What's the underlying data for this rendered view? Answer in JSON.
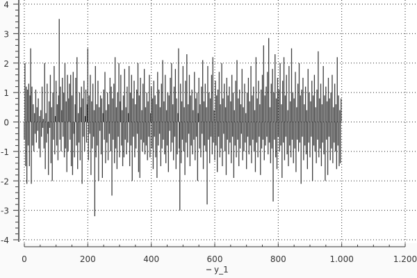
{
  "chart_data": {
    "type": "bar",
    "style": "needle",
    "x_start": 0,
    "x_step": 2,
    "xlim": [
      0,
      1200
    ],
    "ylim": [
      -4,
      4
    ],
    "x_ticks": [
      "0",
      "200",
      "400",
      "600",
      "800",
      "1.000",
      "1.200"
    ],
    "x_tick_values": [
      0,
      200,
      400,
      600,
      800,
      1000,
      1200
    ],
    "y_ticks": [
      "4",
      "3",
      "2",
      "1",
      "0",
      "-1",
      "-2",
      "-3",
      "-4"
    ],
    "y_tick_values": [
      4,
      3,
      2,
      1,
      0,
      -1,
      -2,
      -3,
      -4
    ],
    "grid": true,
    "legend_position": "bottom",
    "series": [
      {
        "name": "y_1",
        "color": "#1a1a1a",
        "values": [
          -0.6,
          2.0,
          -1.5,
          1.2,
          -2.1,
          1.1,
          -0.8,
          1.3,
          -1.5,
          0.9,
          2.5,
          -2.1,
          1.2,
          -0.8,
          0.6,
          -1.0,
          0.3,
          -0.4,
          1.1,
          -0.7,
          0.5,
          -0.3,
          0.8,
          -0.9,
          0.2,
          -1.2,
          0.4,
          -0.5,
          1.2,
          -0.2,
          0.1,
          -0.9,
          2.0,
          -1.6,
          0.3,
          -0.7,
          1.3,
          -0.4,
          -1.8,
          0.7,
          -0.2,
          1.6,
          -1.4,
          0.5,
          -2.0,
          1.0,
          -0.6,
          1.9,
          -1.1,
          0.2,
          1.4,
          -0.8,
          0.6,
          -1.3,
          0.9,
          3.5,
          -0.6,
          1.2,
          -1.0,
          0.4,
          1.5,
          -0.5,
          1.0,
          -1.2,
          2.0,
          -0.9,
          0.7,
          -1.7,
          1.6,
          -1.0,
          0.8,
          1.3,
          -0.6,
          1.6,
          -1.5,
          0.9,
          -1.8,
          1.7,
          -0.4,
          -1.2,
          0.6,
          1.5,
          -0.8,
          2.2,
          -1.6,
          0.3,
          -0.7,
          1.0,
          -1.3,
          0.5,
          1.2,
          -2.1,
          0.8,
          -0.5,
          1.4,
          -1.0,
          0.2,
          1.1,
          -0.7,
          0.6,
          2.5,
          -1.3,
          0.9,
          -0.4,
          1.6,
          -1.8,
          0.7,
          -0.9,
          1.3,
          -0.5,
          0.4,
          -3.2,
          1.9,
          -1.2,
          0.6,
          -0.8,
          1.4,
          -2.0,
          0.5,
          -0.3,
          0.9,
          -1.1,
          0.8,
          -1.9,
          0.3,
          1.1,
          -0.6,
          1.7,
          -1.4,
          0.4,
          -0.7,
          1.0,
          -1.3,
          0.6,
          -0.4,
          1.5,
          -1.0,
          1.2,
          -2.5,
          0.8,
          -0.6,
          1.3,
          -1.4,
          2.2,
          -0.9,
          0.5,
          -1.6,
          1.0,
          -0.5,
          2.0,
          -1.2,
          0.7,
          1.6,
          -0.8,
          0.4,
          -1.5,
          0.9,
          -1.2,
          1.8,
          -0.6,
          0.5,
          -1.1,
          1.2,
          -0.7,
          0.3,
          1.9,
          -1.5,
          1.0,
          -0.8,
          1.6,
          -2.0,
          0.8,
          -0.5,
          1.4,
          -1.2,
          0.6,
          -0.9,
          1.1,
          -0.4,
          2.0,
          -1.7,
          0.9,
          -1.9,
          1.5,
          -0.6,
          0.4,
          -1.0,
          1.3,
          -0.7,
          1.8,
          -1.1,
          0.5,
          -0.8,
          1.0,
          -1.3,
          0.7,
          -0.5,
          1.6,
          -1.2,
          0.3,
          1.2,
          -0.9,
          0.8,
          -1.6,
          1.4,
          -0.5,
          0.9,
          -1.2,
          0.6,
          -1.9,
          1.7,
          -0.8,
          1.1,
          -0.4,
          0.5,
          -1.5,
          1.3,
          -0.9,
          2.1,
          -0.6,
          0.7,
          -1.1,
          1.6,
          -1.4,
          0.4,
          -0.8,
          1.0,
          -1.7,
          0.9,
          -0.3,
          1.5,
          -1.0,
          2.0,
          -0.7,
          0.6,
          -1.3,
          1.2,
          -0.5,
          1.8,
          -1.6,
          0.8,
          -1.1,
          0.3,
          2.5,
          -0.9,
          -3.0,
          1.3,
          -1.4,
          0.7,
          -0.6,
          1.9,
          -1.0,
          0.5,
          -1.8,
          1.4,
          -0.7,
          2.3,
          -1.2,
          0.6,
          -0.4,
          1.6,
          -1.5,
          0.9,
          -0.8,
          1.1,
          -1.1,
          0.4,
          -0.6,
          1.7,
          -1.3,
          0.8,
          -0.5,
          1.0,
          -2.0,
          0.3,
          1.5,
          -0.9,
          0.6,
          -1.2,
          1.2,
          -0.4,
          2.1,
          -1.6,
          0.7,
          -0.8,
          1.3,
          -1.0,
          0.5,
          -2.8,
          1.9,
          -0.6,
          1.0,
          -1.4,
          0.8,
          -0.5,
          1.6,
          -1.1,
          2.2,
          -0.7,
          0.4,
          -1.3,
          1.4,
          -0.8,
          0.9,
          -1.7,
          1.1,
          -0.5,
          1.7,
          -1.2,
          0.6,
          -0.9,
          2.0,
          -1.5,
          0.8,
          -0.4,
          1.3,
          -1.0,
          0.5,
          -1.8,
          1.5,
          -0.6,
          0.9,
          -1.1,
          1.2,
          -0.7,
          0.7,
          -1.4,
          1.6,
          -0.5,
          1.0,
          -1.9,
          0.4,
          -0.8,
          1.4,
          -1.2,
          2.1,
          -0.6,
          0.8,
          -1.5,
          1.1,
          -0.9,
          0.6,
          -0.4,
          1.8,
          -1.3,
          0.5,
          -1.0,
          1.3,
          -0.7,
          0.3,
          -1.6,
          1.0,
          -0.5,
          1.5,
          -1.1,
          0.7,
          -0.8,
          1.9,
          -1.4,
          0.9,
          -0.6,
          1.2,
          -1.0,
          0.4,
          -1.7,
          2.2,
          -0.7,
          0.8,
          -1.2,
          1.4,
          -0.5,
          0.6,
          -1.8,
          1.1,
          -0.9,
          1.6,
          -0.6,
          2.6,
          -1.3,
          0.9,
          -0.8,
          1.2,
          -0.5,
          1.7,
          -1.1,
          2.85,
          -0.7,
          0.5,
          -1.4,
          1.3,
          -0.9,
          1.8,
          -2.7,
          1.0,
          -0.6,
          2.3,
          -1.2,
          0.8,
          -1.6,
          1.5,
          -0.5,
          1.1,
          -1.0,
          2.0,
          -0.8,
          0.6,
          -1.9,
          1.4,
          -0.7,
          2.2,
          -1.3,
          0.9,
          -0.5,
          1.6,
          -1.1,
          0.4,
          -1.5,
          1.9,
          -0.8,
          0.7,
          -1.2,
          2.5,
          -0.6,
          1.0,
          -1.4,
          0.8,
          -0.9,
          1.7,
          -1.7,
          0.5,
          -0.6,
          1.3,
          -1.0,
          2.0,
          -0.7,
          0.9,
          -2.1,
          1.1,
          -0.5,
          1.5,
          -1.3,
          0.6,
          -0.8,
          1.2,
          -1.1,
          0.4,
          -1.6,
          1.8,
          -0.7,
          1.0,
          -1.2,
          0.7,
          -0.5,
          1.4,
          -2.0,
          0.9,
          -0.8,
          1.6,
          -1.0,
          0.5,
          -1.4,
          1.1,
          -0.6,
          2.4,
          -1.2,
          0.8,
          -0.9,
          1.3,
          -1.5,
          0.6,
          -0.7,
          1.9,
          -1.1,
          0.9,
          -2.0,
          1.2,
          -0.6,
          0.7,
          -1.8,
          1.5,
          -0.5,
          0.8,
          -1.3,
          1.0,
          -0.9,
          1.6,
          -1.4,
          0.5,
          -0.7,
          1.3,
          -1.0,
          0.6,
          -1.6,
          2.2,
          -0.8,
          0.9,
          -1.5,
          0.4,
          -1.4,
          0.8
        ]
      }
    ]
  }
}
